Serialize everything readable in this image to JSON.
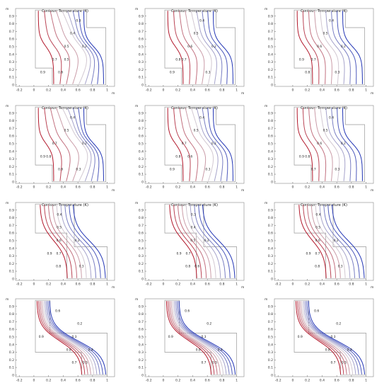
{
  "chart_data": [
    {
      "type": "contour",
      "title": "Contour: Temperature (K)",
      "x_unit": "m",
      "y_unit": "m",
      "xticks": [
        "-0.2",
        "0",
        "0.2",
        "0.4",
        "0.6",
        "0.8",
        "1"
      ],
      "yticks": [
        "0",
        "0.1",
        "0.2",
        "0.3",
        "0.4",
        "0.5",
        "0.6",
        "0.7",
        "0.8",
        "0.9"
      ],
      "xlim": [
        -0.25,
        1.1
      ],
      "ylim": [
        -0.02,
        1.0
      ],
      "grid": false,
      "levels": [
        0.1,
        0.2,
        0.3,
        0.4,
        0.5,
        0.6,
        0.7,
        0.8,
        0.9
      ],
      "line_labels": [
        "0.9",
        "0.7",
        "0.5",
        "0.4",
        "0.3",
        "0.6",
        "0.5",
        "0.2"
      ]
    },
    {
      "type": "contour",
      "title": "Contour: Temperature (K)",
      "x_unit": "m",
      "y_unit": "m",
      "xticks": [
        "-0.2",
        "0",
        "0.2",
        "0.4",
        "0.6",
        "0.8",
        "1"
      ],
      "yticks": [
        "0",
        "0.1",
        "0.2",
        "0.3",
        "0.4",
        "0.5",
        "0.6",
        "0.7",
        "0.8",
        "0.9"
      ],
      "xlim": [
        -0.25,
        1.1
      ],
      "ylim": [
        -0.02,
        1.0
      ],
      "grid": false,
      "levels": [
        0.1,
        0.2,
        0.3,
        0.4,
        0.5,
        0.6,
        0.7,
        0.8,
        0.9
      ],
      "line_labels": [
        "0.9",
        "0.8",
        "0.6",
        "0.5",
        "0.4",
        "0.3",
        "0.7",
        "0.2"
      ]
    },
    {
      "type": "contour",
      "title": "Contour: Temperature (K)",
      "x_unit": "m",
      "y_unit": "m",
      "xticks": [
        "0",
        "0.2",
        "0.4",
        "0.6",
        "0.8",
        "1"
      ],
      "yticks": [
        "0",
        "0.1",
        "0.2",
        "0.3",
        "0.4",
        "0.5",
        "0.6",
        "0.7",
        "0.8",
        "0.9"
      ],
      "xlim": [
        -0.25,
        1.1
      ],
      "ylim": [
        -0.02,
        1.0
      ],
      "grid": false,
      "levels": [
        0.1,
        0.2,
        0.3,
        0.4,
        0.5,
        0.6,
        0.7,
        0.8,
        0.9
      ],
      "line_labels": [
        "0.8",
        "0.7",
        "0.6",
        "0.5",
        "0.4",
        "0.3",
        "0.9",
        "0.2"
      ]
    },
    {
      "type": "contour",
      "title": "Contour: Temperature (K)",
      "x_unit": "m",
      "y_unit": "m",
      "xticks": [
        "-0.2",
        "0",
        "0.2",
        "0.4",
        "0.6",
        "0.8",
        "1"
      ],
      "yticks": [
        "0",
        "0.1",
        "0.2",
        "0.3",
        "0.4",
        "0.5",
        "0.6",
        "0.7",
        "0.8",
        "0.9"
      ],
      "xlim": [
        -0.25,
        1.1
      ],
      "ylim": [
        -0.02,
        1.0
      ],
      "grid": false,
      "levels": [
        0.1,
        0.2,
        0.3,
        0.4,
        0.5,
        0.6,
        0.7,
        0.8,
        0.9
      ],
      "line_labels": [
        "0.6",
        "0.9",
        "0.7",
        "0.5",
        "0.4",
        "0.3",
        "0.8",
        "0.2"
      ]
    },
    {
      "type": "contour",
      "title": "Contour: Temperature (K)",
      "x_unit": "m",
      "y_unit": "m",
      "xticks": [
        "-0.2",
        "0",
        "0.2",
        "0.4",
        "0.6",
        "0.8",
        "1"
      ],
      "yticks": [
        "0",
        "0.1",
        "0.2",
        "0.3",
        "0.4",
        "0.5",
        "0.6",
        "0.7",
        "0.8",
        "0.9"
      ],
      "xlim": [
        -0.25,
        1.1
      ],
      "ylim": [
        -0.02,
        1.0
      ],
      "grid": false,
      "levels": [
        0.1,
        0.2,
        0.3,
        0.4,
        0.5,
        0.6,
        0.7,
        0.8,
        0.9
      ],
      "line_labels": [
        "0.9",
        "0.8",
        "0.7",
        "0.5",
        "0.4",
        "0.3",
        "0.6",
        "0.2"
      ]
    },
    {
      "type": "contour",
      "title": "Contour: Temperature (K)",
      "x_unit": "m",
      "y_unit": "m",
      "xticks": [
        "0",
        "0.2",
        "0.4",
        "0.6",
        "0.8",
        "1"
      ],
      "yticks": [
        "0",
        "0.1",
        "0.2",
        "0.3",
        "0.4",
        "0.5",
        "0.6",
        "0.7",
        "0.8",
        "0.9"
      ],
      "xlim": [
        -0.25,
        1.1
      ],
      "ylim": [
        -0.02,
        1.0
      ],
      "grid": false,
      "levels": [
        0.1,
        0.2,
        0.3,
        0.4,
        0.5,
        0.6,
        0.7,
        0.8,
        0.9
      ],
      "line_labels": [
        "0.7",
        "0.8",
        "0.6",
        "0.5",
        "0.4",
        "0.3",
        "0.9",
        "0.2"
      ]
    },
    {
      "type": "contour",
      "title": "Contour: Temperature (K)",
      "x_unit": "m",
      "y_unit": "m",
      "xticks": [
        "-0.2",
        "0",
        "0.2",
        "0.4",
        "0.6",
        "0.8",
        "1"
      ],
      "yticks": [
        "0",
        "0.1",
        "0.2",
        "0.3",
        "0.4",
        "0.5",
        "0.6",
        "0.7",
        "0.8",
        "0.9"
      ],
      "xlim": [
        -0.25,
        1.1
      ],
      "ylim": [
        -0.02,
        1.0
      ],
      "grid": false,
      "levels": [
        0.1,
        0.2,
        0.3,
        0.4,
        0.5,
        0.6,
        0.7,
        0.8,
        0.9
      ],
      "line_labels": [
        "0.8",
        "0.7",
        "0.6",
        "0.5",
        "0.4",
        "0.3",
        "0.9",
        "0.2"
      ]
    },
    {
      "type": "contour",
      "title": "Contour: Temperature (K)",
      "x_unit": "m",
      "y_unit": "m",
      "xticks": [
        "-0.2",
        "0",
        "0.2",
        "0.4",
        "0.6",
        "0.8",
        "1"
      ],
      "yticks": [
        "0",
        "0.1",
        "0.2",
        "0.3",
        "0.4",
        "0.5",
        "0.6",
        "0.7",
        "0.8",
        "0.9"
      ],
      "xlim": [
        -0.25,
        1.1
      ],
      "ylim": [
        -0.02,
        1.0
      ],
      "grid": false,
      "levels": [
        0.1,
        0.2,
        0.3,
        0.4,
        0.5,
        0.6,
        0.7,
        0.8,
        0.9
      ],
      "line_labels": [
        "0.8",
        "0.7",
        "0.5",
        "0.4",
        "0.3",
        "0.6",
        "0.9",
        "0.2"
      ]
    },
    {
      "type": "contour",
      "title": "Contour: Temperature (K)",
      "x_unit": "m",
      "y_unit": "m",
      "xticks": [
        "-0.2",
        "0",
        "0.2",
        "0.4",
        "0.6",
        "0.8",
        "1"
      ],
      "yticks": [
        "0",
        "0.1",
        "0.2",
        "0.3",
        "0.4",
        "0.5",
        "0.6",
        "0.7",
        "0.8",
        "0.9"
      ],
      "xlim": [
        -0.25,
        1.1
      ],
      "ylim": [
        -0.02,
        1.0
      ],
      "grid": false,
      "levels": [
        0.1,
        0.2,
        0.3,
        0.4,
        0.5,
        0.6,
        0.7,
        0.8,
        0.9
      ],
      "line_labels": [
        "0.8",
        "0.7",
        "0.6",
        "0.5",
        "0.4",
        "0.3",
        "0.9",
        "0.2"
      ]
    },
    {
      "type": "contour",
      "title": "",
      "x_unit": "",
      "y_unit": "m",
      "xticks": [
        "-0.2",
        "0",
        "0.2",
        "0.4",
        "0.6",
        "0.8",
        "1"
      ],
      "yticks": [
        "0",
        "0.1",
        "0.2",
        "0.3",
        "0.4",
        "0.5",
        "0.6",
        "0.7",
        "0.8",
        "0.9"
      ],
      "xlim": [
        -0.25,
        1.1
      ],
      "ylim": [
        -0.02,
        1.0
      ],
      "grid": false,
      "levels": [
        0.1,
        0.2,
        0.3,
        0.4,
        0.5,
        0.6,
        0.7,
        0.8,
        0.9
      ],
      "line_labels": [
        "0.5",
        "0.4",
        "0.3",
        "0.2",
        "0.6",
        "0.7",
        "0.8",
        "0.9"
      ]
    },
    {
      "type": "contour",
      "title": "",
      "x_unit": "",
      "y_unit": "m",
      "xticks": [
        "-0.2",
        "0",
        "0.2",
        "0.4",
        "0.6",
        "0.8",
        "1"
      ],
      "yticks": [
        "0",
        "0.1",
        "0.2",
        "0.3",
        "0.4",
        "0.5",
        "0.6",
        "0.7",
        "0.8",
        "0.9"
      ],
      "xlim": [
        -0.25,
        1.1
      ],
      "ylim": [
        -0.02,
        1.0
      ],
      "grid": false,
      "levels": [
        0.1,
        0.2,
        0.3,
        0.4,
        0.5,
        0.6,
        0.7,
        0.8,
        0.9
      ],
      "line_labels": [
        "0.5",
        "0.4",
        "0.3",
        "0.2",
        "0.6",
        "0.7",
        "0.8",
        "0.9"
      ]
    },
    {
      "type": "contour",
      "title": "",
      "x_unit": "",
      "y_unit": "m",
      "xticks": [
        "-0.2",
        "0",
        "0.2",
        "0.4",
        "0.6",
        "0.8",
        "1"
      ],
      "yticks": [
        "0",
        "0.1",
        "0.2",
        "0.3",
        "0.4",
        "0.5",
        "0.6",
        "0.7",
        "0.8",
        "0.9"
      ],
      "xlim": [
        -0.25,
        1.1
      ],
      "ylim": [
        -0.02,
        1.0
      ],
      "grid": false,
      "levels": [
        0.1,
        0.2,
        0.3,
        0.4,
        0.5,
        0.6,
        0.7,
        0.8,
        0.9
      ],
      "line_labels": [
        "0.5",
        "0.4",
        "0.3",
        "0.2",
        "0.6",
        "0.7",
        "0.8",
        "0.9"
      ]
    }
  ]
}
